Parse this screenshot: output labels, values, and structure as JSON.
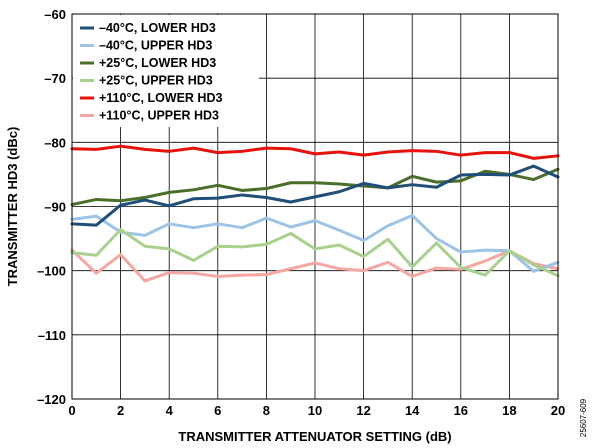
{
  "chart_data": {
    "type": "line",
    "title": "",
    "xlabel": "TRANSMITTER ATTENUATOR SETTING (dB)",
    "ylabel": "TRANSMITTER HD3 (dBc)",
    "xlim": [
      0,
      20
    ],
    "ylim": [
      -120,
      -60
    ],
    "xticks": [
      0,
      2,
      4,
      6,
      8,
      10,
      12,
      14,
      16,
      18,
      20
    ],
    "yticks": [
      -60,
      -70,
      -80,
      -90,
      -100,
      -110,
      -120
    ],
    "xtick_labels": [
      "0",
      "2",
      "4",
      "6",
      "8",
      "10",
      "12",
      "14",
      "16",
      "18",
      "20"
    ],
    "ytick_labels": [
      "–60",
      "–70",
      "–80",
      "–90",
      "–100",
      "–110",
      "–120"
    ],
    "grid": true,
    "legend_position": "top-left",
    "x": [
      0,
      1,
      2,
      3,
      4,
      5,
      6,
      7,
      8,
      9,
      10,
      11,
      12,
      13,
      14,
      15,
      16,
      17,
      18,
      19,
      20
    ],
    "series": [
      {
        "name": "–40°C, LOWER HD3",
        "color": "#1f4e79",
        "values": [
          -92.7,
          -92.9,
          -89.8,
          -89.0,
          -89.9,
          -88.8,
          -88.7,
          -88.2,
          -88.6,
          -89.3,
          -88.5,
          -87.7,
          -86.4,
          -87.1,
          -86.6,
          -87.0,
          -85.1,
          -85.0,
          -85.1,
          -83.7,
          -85.4
        ]
      },
      {
        "name": "–40°C, UPPER HD3",
        "color": "#9dc3e6",
        "values": [
          -92.0,
          -91.5,
          -94.0,
          -94.5,
          -92.7,
          -93.3,
          -92.7,
          -93.3,
          -91.8,
          -93.2,
          -92.2,
          -93.7,
          -95.3,
          -93.0,
          -91.4,
          -95.0,
          -97.1,
          -96.8,
          -96.9,
          -100.1,
          -98.7
        ]
      },
      {
        "name": "+25°C, LOWER HD3",
        "color": "#4a6e2a",
        "values": [
          -89.7,
          -88.9,
          -89.1,
          -88.6,
          -87.8,
          -87.4,
          -86.7,
          -87.5,
          -87.2,
          -86.3,
          -86.3,
          -86.5,
          -86.8,
          -87.1,
          -85.3,
          -86.2,
          -86.0,
          -84.5,
          -85.0,
          -85.8,
          -84.2
        ]
      },
      {
        "name": "+25°C, UPPER HD3",
        "color": "#a9d18e",
        "values": [
          -97.2,
          -97.6,
          -93.6,
          -96.2,
          -96.6,
          -98.4,
          -96.2,
          -96.3,
          -95.9,
          -94.2,
          -96.6,
          -96.0,
          -97.8,
          -95.1,
          -99.4,
          -95.7,
          -99.5,
          -100.7,
          -96.9,
          -99.1,
          -100.8
        ]
      },
      {
        "name": "+110°C, LOWER HD3",
        "color": "#e8120c",
        "values": [
          -81.0,
          -81.1,
          -80.6,
          -81.1,
          -81.4,
          -80.9,
          -81.6,
          -81.4,
          -80.9,
          -81.0,
          -81.8,
          -81.5,
          -82.0,
          -81.5,
          -81.3,
          -81.4,
          -82.0,
          -81.6,
          -81.6,
          -82.5,
          -82.1
        ]
      },
      {
        "name": "+110°C, UPPER HD3",
        "color": "#f4a7a3",
        "values": [
          -96.8,
          -100.4,
          -97.5,
          -101.6,
          -100.3,
          -100.4,
          -100.9,
          -100.7,
          -100.6,
          -99.7,
          -98.8,
          -99.7,
          -100.0,
          -98.7,
          -100.9,
          -99.6,
          -99.8,
          -98.5,
          -96.9,
          -98.9,
          -99.7
        ]
      }
    ],
    "figure_id": "25607-609"
  }
}
